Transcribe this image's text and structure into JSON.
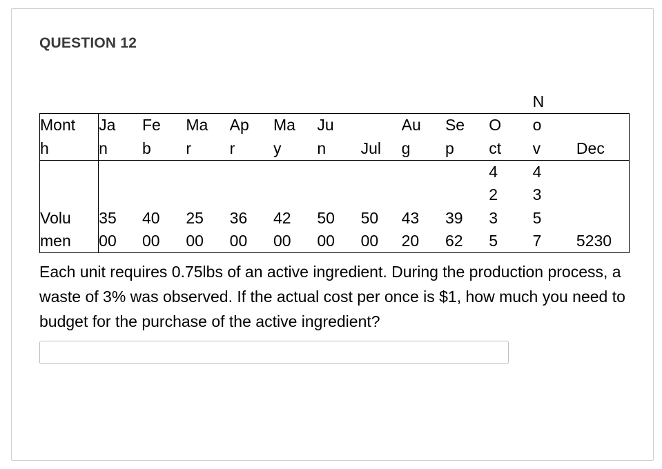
{
  "title": "QUESTION 12",
  "table": {
    "rowLabels": {
      "month": "Mont\nh",
      "volume": "Volu\nmen"
    },
    "preRow": [
      "",
      "",
      "",
      "",
      "",
      "",
      "",
      "",
      "",
      "",
      "N",
      ""
    ],
    "months": [
      "Ja\nn",
      "Fe\nb",
      "Ma\nr",
      "Ap\nr",
      "Ma\ny",
      "Ju\nn",
      "Jul",
      "Au\ng",
      "Se\np",
      "O\nct",
      "o\nv",
      "Dec"
    ],
    "volumes": [
      "35\n00",
      "40\n00",
      "25\n00",
      "36\n00",
      "42\n00",
      "50\n00",
      "50\n00",
      "43\n20",
      "39\n62",
      "4\n2\n3\n5",
      "4\n3\n5\n7",
      "5230"
    ]
  },
  "prose": "Each unit requires 0.75lbs of an active ingredient. During the production process, a waste of 3% was observed. If the actual cost per once is $1, how much you need to budget for the purchase of the active ingredient?",
  "answer": ""
}
